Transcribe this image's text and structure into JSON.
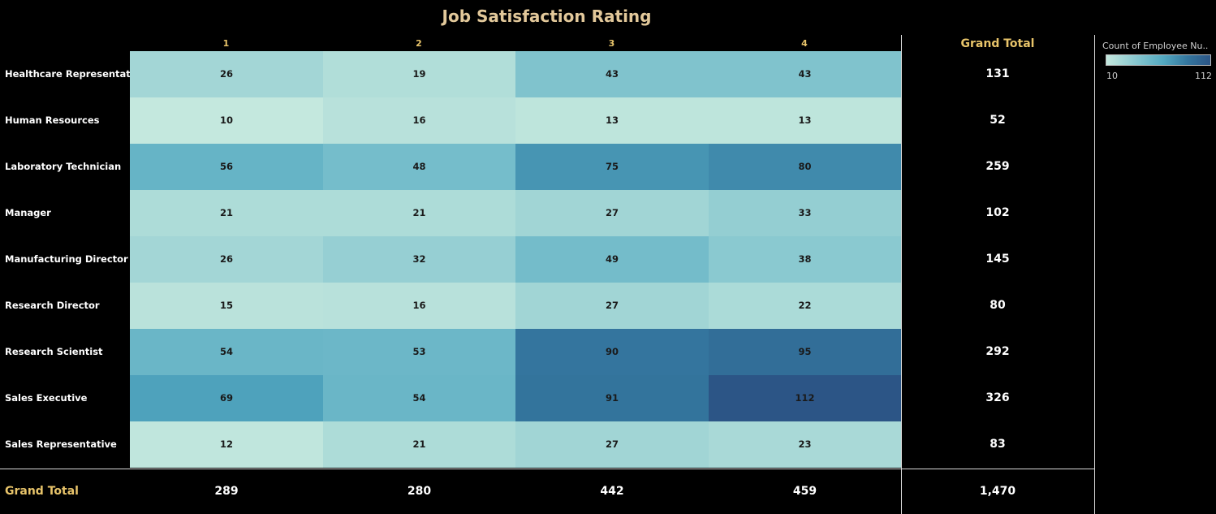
{
  "chart_data": {
    "type": "heatmap",
    "title": "Job Satisfaction Rating",
    "columns": [
      "1",
      "2",
      "3",
      "4"
    ],
    "rows": [
      "Healthcare Representative",
      "Human Resources",
      "Laboratory Technician",
      "Manager",
      "Manufacturing Director",
      "Research Director",
      "Research Scientist",
      "Sales Executive",
      "Sales Representative"
    ],
    "values": [
      [
        26,
        19,
        43,
        43
      ],
      [
        10,
        16,
        13,
        13
      ],
      [
        56,
        48,
        75,
        80
      ],
      [
        21,
        21,
        27,
        33
      ],
      [
        26,
        32,
        49,
        38
      ],
      [
        15,
        16,
        27,
        22
      ],
      [
        54,
        53,
        90,
        95
      ],
      [
        69,
        54,
        91,
        112
      ],
      [
        12,
        21,
        27,
        23
      ]
    ],
    "row_totals": [
      "131",
      "52",
      "259",
      "102",
      "145",
      "80",
      "292",
      "326",
      "83"
    ],
    "column_totals": [
      "289",
      "280",
      "442",
      "459"
    ],
    "grand_total_label": "Grand Total",
    "grand_total": "1,470",
    "legend": {
      "title": "Count of Employee Nu..",
      "min": 10,
      "max": 112,
      "color_low": "#c4e8de",
      "color_high": "#2c5586"
    }
  }
}
